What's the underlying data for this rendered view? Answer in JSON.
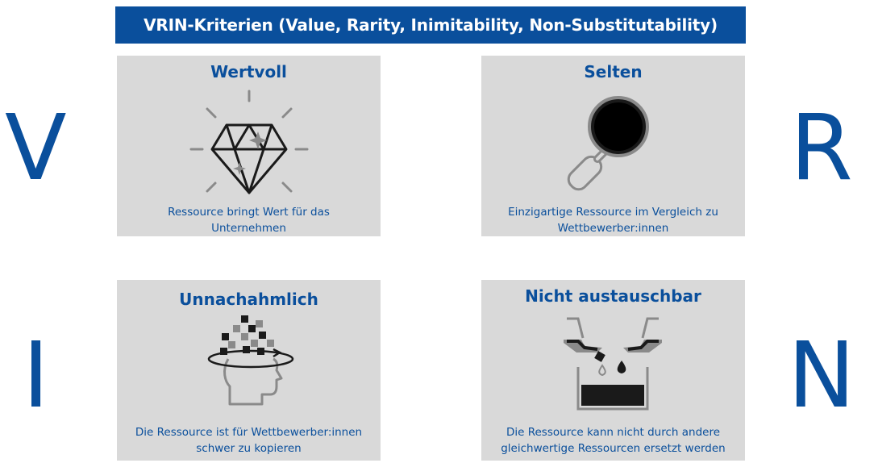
{
  "header": {
    "title": "VRIN-Kriterien (Value, Rarity, Inimitability, Non-Substitutability)"
  },
  "letters": {
    "v": "V",
    "r": "R",
    "i": "I",
    "n": "N"
  },
  "cards": [
    {
      "title": "Wertvoll",
      "desc_line1": "Ressource bringt Wert für das",
      "desc_line2": "Unternehmen",
      "icon": "diamond-icon"
    },
    {
      "title": "Selten",
      "desc_line1": "Einzigartige Ressource im Vergleich zu",
      "desc_line2": "Wettbewerber:innen",
      "icon": "magnifier-icon"
    },
    {
      "title": "Unnachahmlich",
      "desc_line1": "Die Ressource ist für Wettbewerber:innen",
      "desc_line2": "schwer zu kopieren",
      "icon": "head-pixels-icon"
    },
    {
      "title": "Nicht austauschbar",
      "desc_line1": "Die Ressource kann nicht durch andere",
      "desc_line2": "gleichwertige Ressourcen ersetzt werden",
      "icon": "pouring-liquid-icon"
    }
  ],
  "colors": {
    "brand_blue": "#0a4f9c",
    "card_bg": "#d9d9d9",
    "icon_dark": "#1a1a1a",
    "icon_gray": "#808080"
  }
}
